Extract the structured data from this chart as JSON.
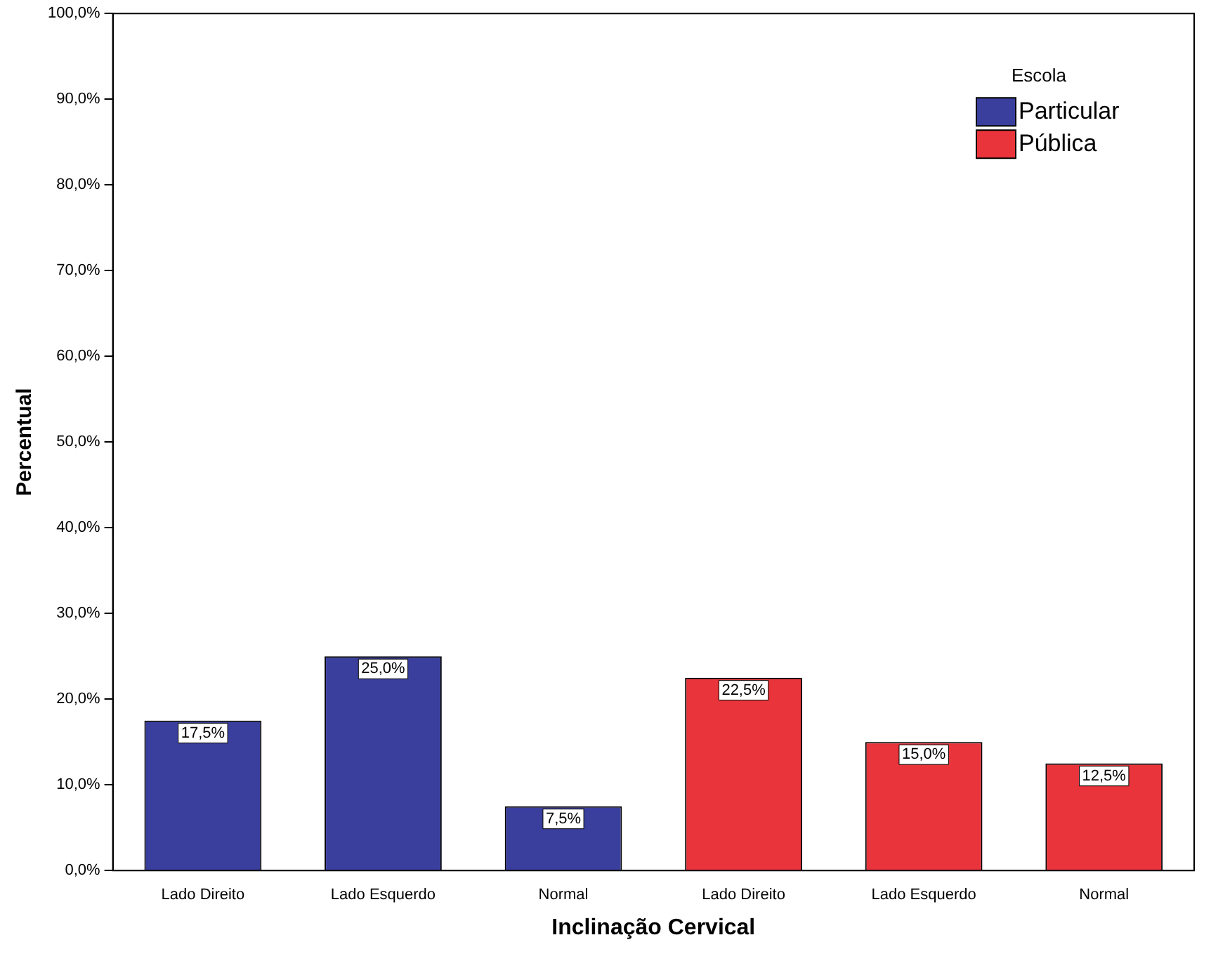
{
  "chart_data": {
    "type": "bar",
    "xlabel": "Inclinação Cervical",
    "ylabel": "Percentual",
    "legend_title": "Escola",
    "categories": [
      "Lado Direito",
      "Lado Esquerdo",
      "Normal",
      "Lado Direito",
      "Lado Esquerdo",
      "Normal"
    ],
    "series": [
      {
        "name": "Particular",
        "color": "#3a3f9e",
        "values": [
          17.5,
          25,
          7.5,
          null,
          null,
          null
        ],
        "value_labels": [
          "17,5%",
          "25,0%",
          "7,5%",
          null,
          null,
          null
        ]
      },
      {
        "name": "Pública",
        "color": "#e8343a",
        "values": [
          null,
          null,
          null,
          22.5,
          15,
          12.5
        ],
        "value_labels": [
          null,
          null,
          null,
          "22,5%",
          "15,0%",
          "12,5%"
        ]
      }
    ],
    "ylim": [
      0,
      100
    ],
    "yticks": [
      {
        "value": 0,
        "label": "0,0%"
      },
      {
        "value": 10,
        "label": "10,0%"
      },
      {
        "value": 20,
        "label": "20,0%"
      },
      {
        "value": 30,
        "label": "30,0%"
      },
      {
        "value": 40,
        "label": "40,0%"
      },
      {
        "value": 50,
        "label": "50,0%"
      },
      {
        "value": 60,
        "label": "60,0%"
      },
      {
        "value": 70,
        "label": "70,0%"
      },
      {
        "value": 80,
        "label": "80,0%"
      },
      {
        "value": 90,
        "label": "90,0%"
      },
      {
        "value": 100,
        "label": "100,0%"
      }
    ],
    "grid": false,
    "legend": "top right"
  }
}
